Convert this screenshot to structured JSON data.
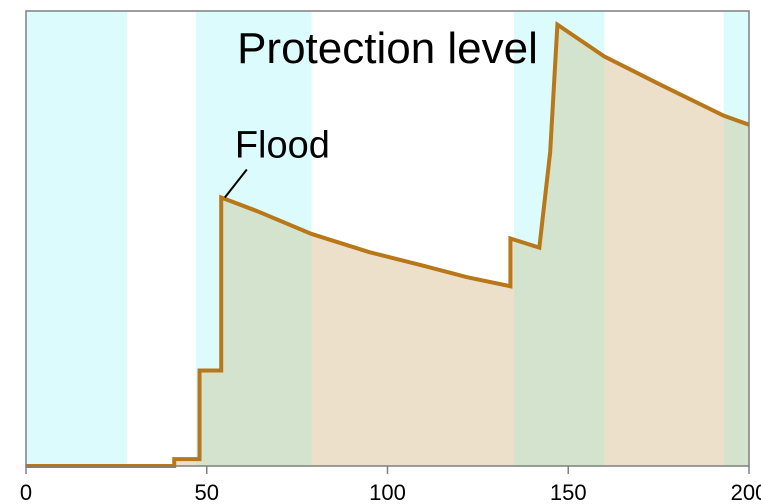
{
  "chart_data": {
    "type": "area",
    "title": "Protection level",
    "xlabel": "",
    "ylabel": "",
    "xlim": [
      0,
      200
    ],
    "ylim": [
      0,
      100
    ],
    "xticks": [
      0,
      50,
      100,
      150,
      200
    ],
    "grid": false,
    "legend": "none",
    "shaded_periods": [
      {
        "start": 0,
        "end": 28
      },
      {
        "start": 47,
        "end": 79
      },
      {
        "start": 135,
        "end": 160
      },
      {
        "start": 193,
        "end": 200
      }
    ],
    "annotation": {
      "text": "Flood",
      "x": 55,
      "y": 59
    },
    "series": [
      {
        "x": [
          0,
          41,
          41,
          48,
          48,
          54,
          54,
          64,
          79,
          95,
          110,
          122,
          134,
          134,
          142,
          142,
          145,
          145,
          147,
          147,
          160,
          175,
          193,
          193,
          200
        ],
        "y": [
          0,
          0,
          1.5,
          1.5,
          21,
          21,
          59,
          56,
          51,
          47,
          44,
          41.5,
          39.5,
          50,
          48,
          48,
          69,
          69,
          97,
          97,
          90,
          84,
          77,
          77,
          75
        ]
      }
    ],
    "colors": {
      "line": "#b87718",
      "fill_shaded": "#d3e3ce",
      "fill_plain": "#ede0cb",
      "period_background": "#dcfbfd",
      "axes": "#7f7f7f"
    }
  }
}
